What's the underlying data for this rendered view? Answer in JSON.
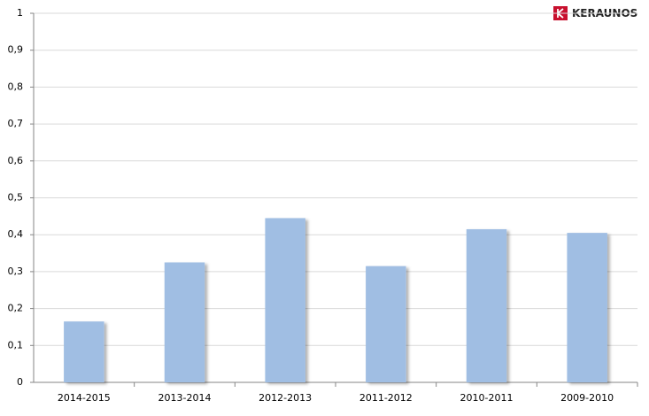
{
  "logo": "KERAUNOS",
  "chart_data": {
    "type": "bar",
    "categories": [
      "2014-2015",
      "2013-2014",
      "2012-2013",
      "2011-2012",
      "2010-2011",
      "2009-2010"
    ],
    "values": [
      0.165,
      0.325,
      0.445,
      0.315,
      0.415,
      0.405
    ],
    "color": "#a0bee3",
    "ylim": [
      0,
      1
    ],
    "yticks": [
      0,
      {
        "value": 0.1,
        "label": "0,1"
      },
      {
        "value": 0.2,
        "label": "0,2"
      },
      {
        "value": 0.3,
        "label": "0,3"
      },
      {
        "value": 0.4,
        "label": "0,4"
      },
      {
        "value": 0.5,
        "label": "0,5"
      },
      {
        "value": 0.6,
        "label": "0,6"
      },
      {
        "value": 0.7,
        "label": "0,7"
      },
      {
        "value": 0.8,
        "label": "0,8"
      },
      {
        "value": 0.9,
        "label": "0,9"
      },
      1
    ],
    "grid": true
  }
}
